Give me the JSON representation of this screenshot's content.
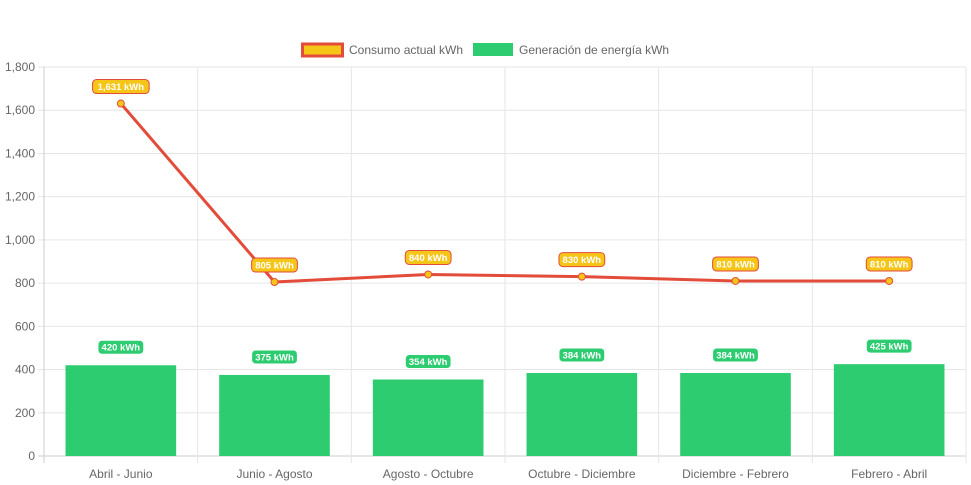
{
  "chart_data": {
    "type": "bar",
    "categories": [
      "Abril - Junio",
      "Junio - Agosto",
      "Agosto - Octubre",
      "Octubre - Diciembre",
      "Diciembre - Febrero",
      "Febrero - Abril"
    ],
    "series": [
      {
        "name": "Consumo actual kWh",
        "type": "line",
        "values": [
          1631,
          805,
          840,
          830,
          810,
          810
        ],
        "data_labels": [
          "1,631 kWh",
          "805 kWh",
          "840 kWh",
          "830 kWh",
          "810 kWh",
          "810 kWh"
        ],
        "line_color": "#e34b3a",
        "fill_color": "#f5c518"
      },
      {
        "name": "Generación de energía kWh",
        "type": "bar",
        "values": [
          420,
          375,
          354,
          384,
          384,
          425
        ],
        "data_labels": [
          "420 kWh",
          "375 kWh",
          "354 kWh",
          "384 kWh",
          "384 kWh",
          "425 kWh"
        ],
        "fill_color": "#2ecc71"
      }
    ],
    "yticks": [
      "0",
      "200",
      "400",
      "600",
      "800",
      "1,000",
      "1,200",
      "1,400",
      "1,600",
      "1,800"
    ],
    "ylim": [
      0,
      1800
    ],
    "ytick_step": 200,
    "grid": true,
    "legend_position": "top-center",
    "title": "",
    "xlabel": "",
    "ylabel": ""
  }
}
